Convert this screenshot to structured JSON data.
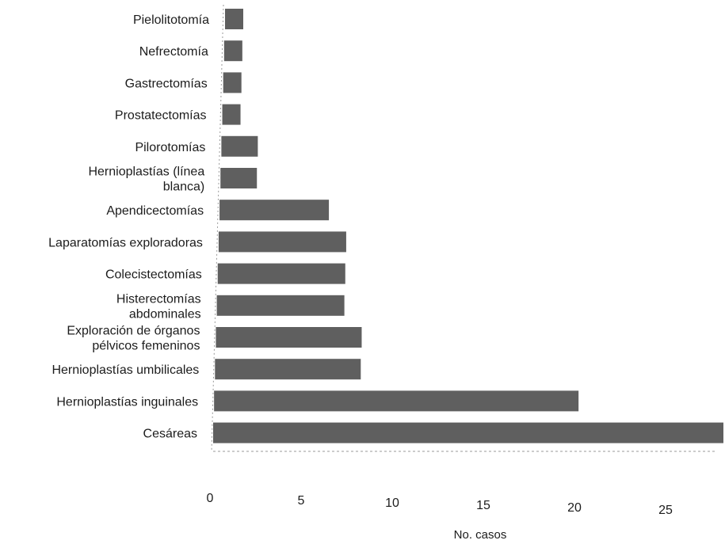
{
  "chart_data": {
    "type": "bar",
    "orientation": "horizontal",
    "categories": [
      "Pielolitotomía",
      "Nefrectomía",
      "Gastrectomías",
      "Prostatectomías",
      "Pilorotomías",
      "Hernioplastías (línea blanca)",
      "Apendicectomías",
      "Laparatomías exploradoras",
      "Colecistectomías",
      "Histerectomías abdominales",
      "Exploración de órganos pélvicos femeninos",
      "Hernioplastías umbilicales",
      "Hernioplastías inguinales",
      "Cesáreas"
    ],
    "category_lines": [
      [
        "Pielolitotomía"
      ],
      [
        "Nefrectomía"
      ],
      [
        "Gastrectomías"
      ],
      [
        "Prostatectomías"
      ],
      [
        "Pilorotomías"
      ],
      [
        "Hernioplastías (línea",
        "blanca)"
      ],
      [
        "Apendicectomías"
      ],
      [
        "Laparatomías exploradoras"
      ],
      [
        "Colecistectomías"
      ],
      [
        "Histerectomías",
        "abdominales"
      ],
      [
        "Exploración de órganos",
        "pélvicos femeninos"
      ],
      [
        "Hernioplastías umbilicales"
      ],
      [
        "Hernioplastías inguinales"
      ],
      [
        "Cesáreas"
      ]
    ],
    "values": [
      1,
      1,
      1,
      1,
      2,
      2,
      6,
      7,
      7,
      7,
      8,
      8,
      20,
      28
    ],
    "xlabel": "No. casos",
    "ylabel": "",
    "title": "",
    "xlim": [
      0,
      28
    ],
    "xticks": [
      0,
      5,
      10,
      15,
      20,
      25
    ],
    "bar_color": "#5f5f5f",
    "grid": false
  }
}
